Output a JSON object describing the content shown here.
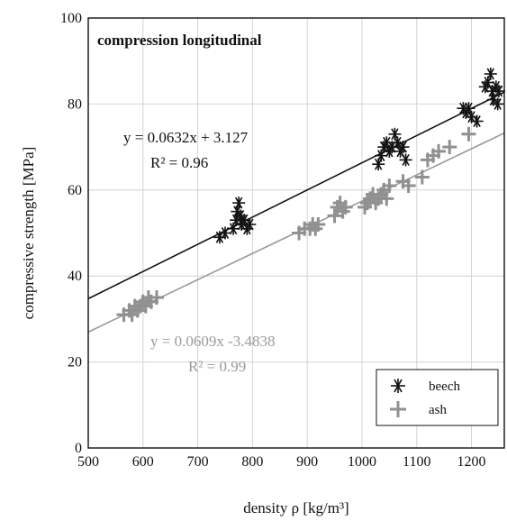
{
  "chart_data": {
    "type": "scatter",
    "title": "compression longitudinal",
    "xlabel": "density ρ [kg/m³]",
    "ylabel": "compressive strength [MPa]",
    "xlim": [
      500,
      1260
    ],
    "ylim": [
      0,
      100
    ],
    "xticks": [
      500,
      600,
      700,
      800,
      900,
      1000,
      1100,
      1200
    ],
    "yticks": [
      0,
      20,
      40,
      60,
      80,
      100
    ],
    "grid": true,
    "legend_position": "bottom-right",
    "series": [
      {
        "name": "beech",
        "marker": "asterisk",
        "color": "#111111",
        "points": [
          [
            740,
            49
          ],
          [
            750,
            50
          ],
          [
            765,
            51
          ],
          [
            770,
            53
          ],
          [
            772,
            55
          ],
          [
            775,
            57
          ],
          [
            778,
            54
          ],
          [
            780,
            52
          ],
          [
            785,
            53
          ],
          [
            790,
            51
          ],
          [
            795,
            52
          ],
          [
            1030,
            66
          ],
          [
            1035,
            68
          ],
          [
            1040,
            70
          ],
          [
            1045,
            71
          ],
          [
            1050,
            69
          ],
          [
            1055,
            70
          ],
          [
            1060,
            73
          ],
          [
            1065,
            71
          ],
          [
            1070,
            69
          ],
          [
            1075,
            70
          ],
          [
            1080,
            67
          ],
          [
            1185,
            79
          ],
          [
            1190,
            78
          ],
          [
            1195,
            79
          ],
          [
            1200,
            77
          ],
          [
            1210,
            76
          ],
          [
            1225,
            84
          ],
          [
            1230,
            85
          ],
          [
            1235,
            87
          ],
          [
            1238,
            83
          ],
          [
            1240,
            81
          ],
          [
            1245,
            84
          ],
          [
            1248,
            80
          ],
          [
            1250,
            83
          ]
        ],
        "trendline": {
          "slope": 0.0632,
          "intercept": 3.127,
          "equation": "y = 0.0632x + 3.127",
          "r2": "R² = 0.96",
          "color": "#111111"
        }
      },
      {
        "name": "ash",
        "marker": "plus",
        "color": "#909090",
        "points": [
          [
            565,
            31
          ],
          [
            575,
            32
          ],
          [
            580,
            31
          ],
          [
            585,
            33
          ],
          [
            590,
            32
          ],
          [
            595,
            33
          ],
          [
            600,
            34
          ],
          [
            605,
            33
          ],
          [
            610,
            35
          ],
          [
            615,
            34
          ],
          [
            625,
            35
          ],
          [
            885,
            50
          ],
          [
            895,
            51
          ],
          [
            905,
            51
          ],
          [
            910,
            52
          ],
          [
            915,
            51
          ],
          [
            920,
            52
          ],
          [
            950,
            54
          ],
          [
            955,
            56
          ],
          [
            960,
            57
          ],
          [
            965,
            55
          ],
          [
            970,
            56
          ],
          [
            1005,
            56
          ],
          [
            1010,
            57
          ],
          [
            1015,
            58
          ],
          [
            1020,
            59
          ],
          [
            1025,
            57
          ],
          [
            1030,
            58
          ],
          [
            1035,
            59
          ],
          [
            1040,
            60
          ],
          [
            1045,
            58
          ],
          [
            1050,
            61
          ],
          [
            1075,
            62
          ],
          [
            1085,
            61
          ],
          [
            1110,
            63
          ],
          [
            1120,
            67
          ],
          [
            1130,
            68
          ],
          [
            1140,
            69
          ],
          [
            1160,
            70
          ],
          [
            1195,
            73
          ]
        ],
        "trendline": {
          "slope": 0.0609,
          "intercept": -3.4838,
          "equation": "y = 0.0609x -3.4838",
          "r2": "R² = 0.99",
          "color": "#9a9a9a"
        }
      }
    ]
  }
}
